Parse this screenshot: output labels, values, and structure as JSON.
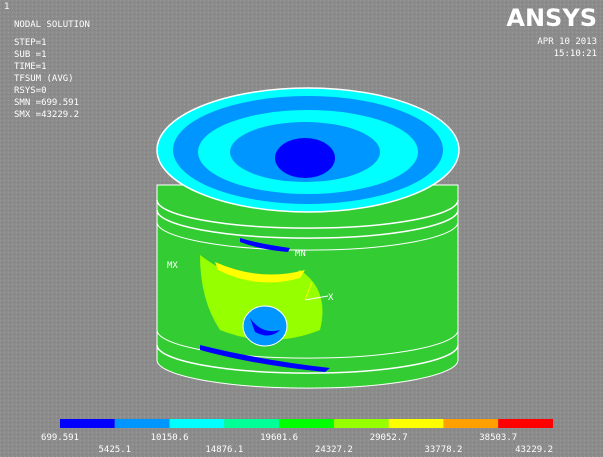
{
  "window_number": "1",
  "info": [
    "NODAL SOLUTION",
    "STEP=1",
    "SUB =1",
    "TIME=1",
    "TFSUM    (AVG)",
    "RSYS=0",
    "SMN =699.591",
    "SMX =43229.2"
  ],
  "logo": "ANSYS",
  "date": "APR 10 2013",
  "time": "15:10:21",
  "model_labels": {
    "min": "MN",
    "max": "MX",
    "axis": "X"
  },
  "legend": {
    "colors": [
      "#0000ff",
      "#0096ff",
      "#00ffff",
      "#00ff96",
      "#00ff00",
      "#96ff00",
      "#ffff00",
      "#ffa000",
      "#ff0000"
    ],
    "labels": [
      "699.591",
      "5425.1",
      "10150.6",
      "14876.1",
      "19601.6",
      "24327.2",
      "29052.7",
      "33778.2",
      "38503.7",
      "43229.2"
    ]
  }
}
